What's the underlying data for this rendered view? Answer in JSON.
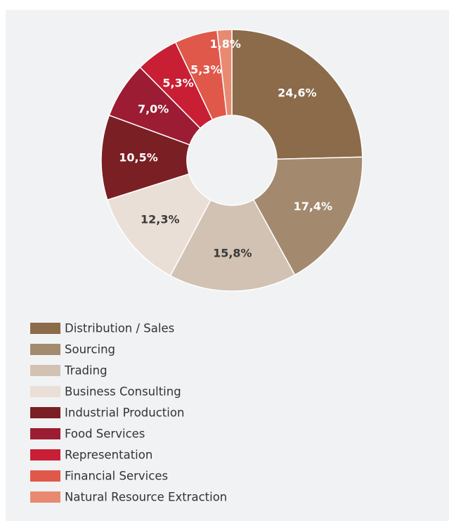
{
  "chart_data": {
    "type": "donut",
    "categories": [
      "Distribution / Sales",
      "Sourcing",
      "Trading",
      "Business Consulting",
      "Industrial Production",
      "Food Services",
      "Representation",
      "Financial Services",
      "Natural Resource Extraction"
    ],
    "values": [
      24.6,
      17.4,
      15.8,
      12.3,
      10.5,
      7.0,
      5.3,
      5.3,
      1.8
    ],
    "value_labels": [
      "24,6%",
      "17,4%",
      "15,8%",
      "12,3%",
      "10,5%",
      "7,0%",
      "5,3%",
      "5,3%",
      "1,8%"
    ],
    "colors": [
      "#8b6b4a",
      "#a38a6e",
      "#d2c2b3",
      "#e9dfd6",
      "#7a1f24",
      "#9c1c33",
      "#c81f34",
      "#e0584a",
      "#e88a72"
    ],
    "legend": "bottom-left"
  }
}
